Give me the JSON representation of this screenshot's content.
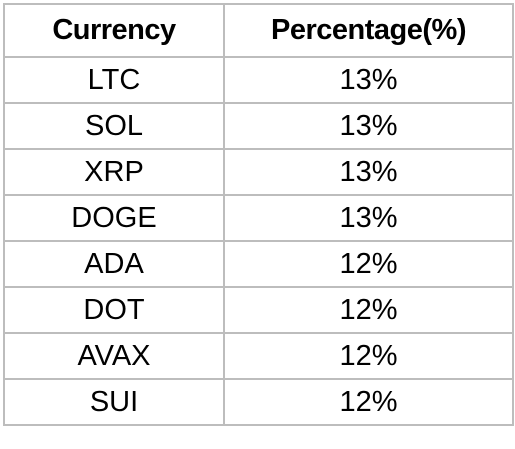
{
  "table": {
    "headers": [
      "Currency",
      "Percentage(%)"
    ],
    "rows": [
      {
        "currency": "LTC",
        "percentage": "13%"
      },
      {
        "currency": "SOL",
        "percentage": "13%"
      },
      {
        "currency": "XRP",
        "percentage": "13%"
      },
      {
        "currency": "DOGE",
        "percentage": "13%"
      },
      {
        "currency": "ADA",
        "percentage": "12%"
      },
      {
        "currency": "DOT",
        "percentage": "12%"
      },
      {
        "currency": "AVAX",
        "percentage": "12%"
      },
      {
        "currency": "SUI",
        "percentage": "12%"
      }
    ]
  },
  "colors": {
    "border": "#bdbdbd",
    "text": "#000000",
    "background": "#ffffff"
  }
}
